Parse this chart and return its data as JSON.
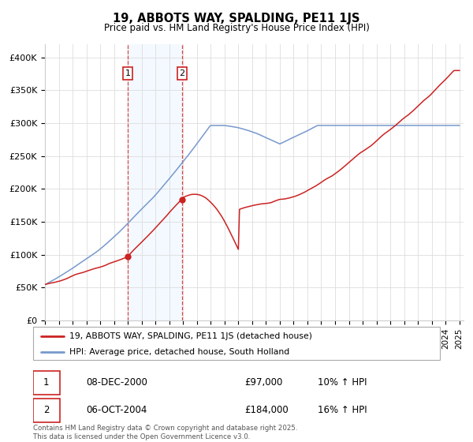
{
  "title": "19, ABBOTS WAY, SPALDING, PE11 1JS",
  "subtitle": "Price paid vs. HM Land Registry's House Price Index (HPI)",
  "ylim": [
    0,
    420000
  ],
  "yticks": [
    0,
    50000,
    100000,
    150000,
    200000,
    250000,
    300000,
    350000,
    400000
  ],
  "ytick_labels": [
    "£0",
    "£50K",
    "£100K",
    "£150K",
    "£200K",
    "£250K",
    "£300K",
    "£350K",
    "£400K"
  ],
  "line1_color": "#cc2222",
  "line2_color": "#7799cc",
  "marker1_date": 2001.0,
  "marker1_value": 97000,
  "marker2_date": 2004.92,
  "marker2_value": 184000,
  "vline_color": "#dd4444",
  "shade_color": "#ddeeff",
  "legend_label1": "19, ABBOTS WAY, SPALDING, PE11 1JS (detached house)",
  "legend_label2": "HPI: Average price, detached house, South Holland",
  "table_row1": [
    "1",
    "08-DEC-2000",
    "£97,000",
    "10% ↑ HPI"
  ],
  "table_row2": [
    "2",
    "06-OCT-2004",
    "£184,000",
    "16% ↑ HPI"
  ],
  "footer": "Contains HM Land Registry data © Crown copyright and database right 2025.\nThis data is licensed under the Open Government Licence v3.0.",
  "background_color": "#ffffff",
  "grid_color": "#dddddd"
}
